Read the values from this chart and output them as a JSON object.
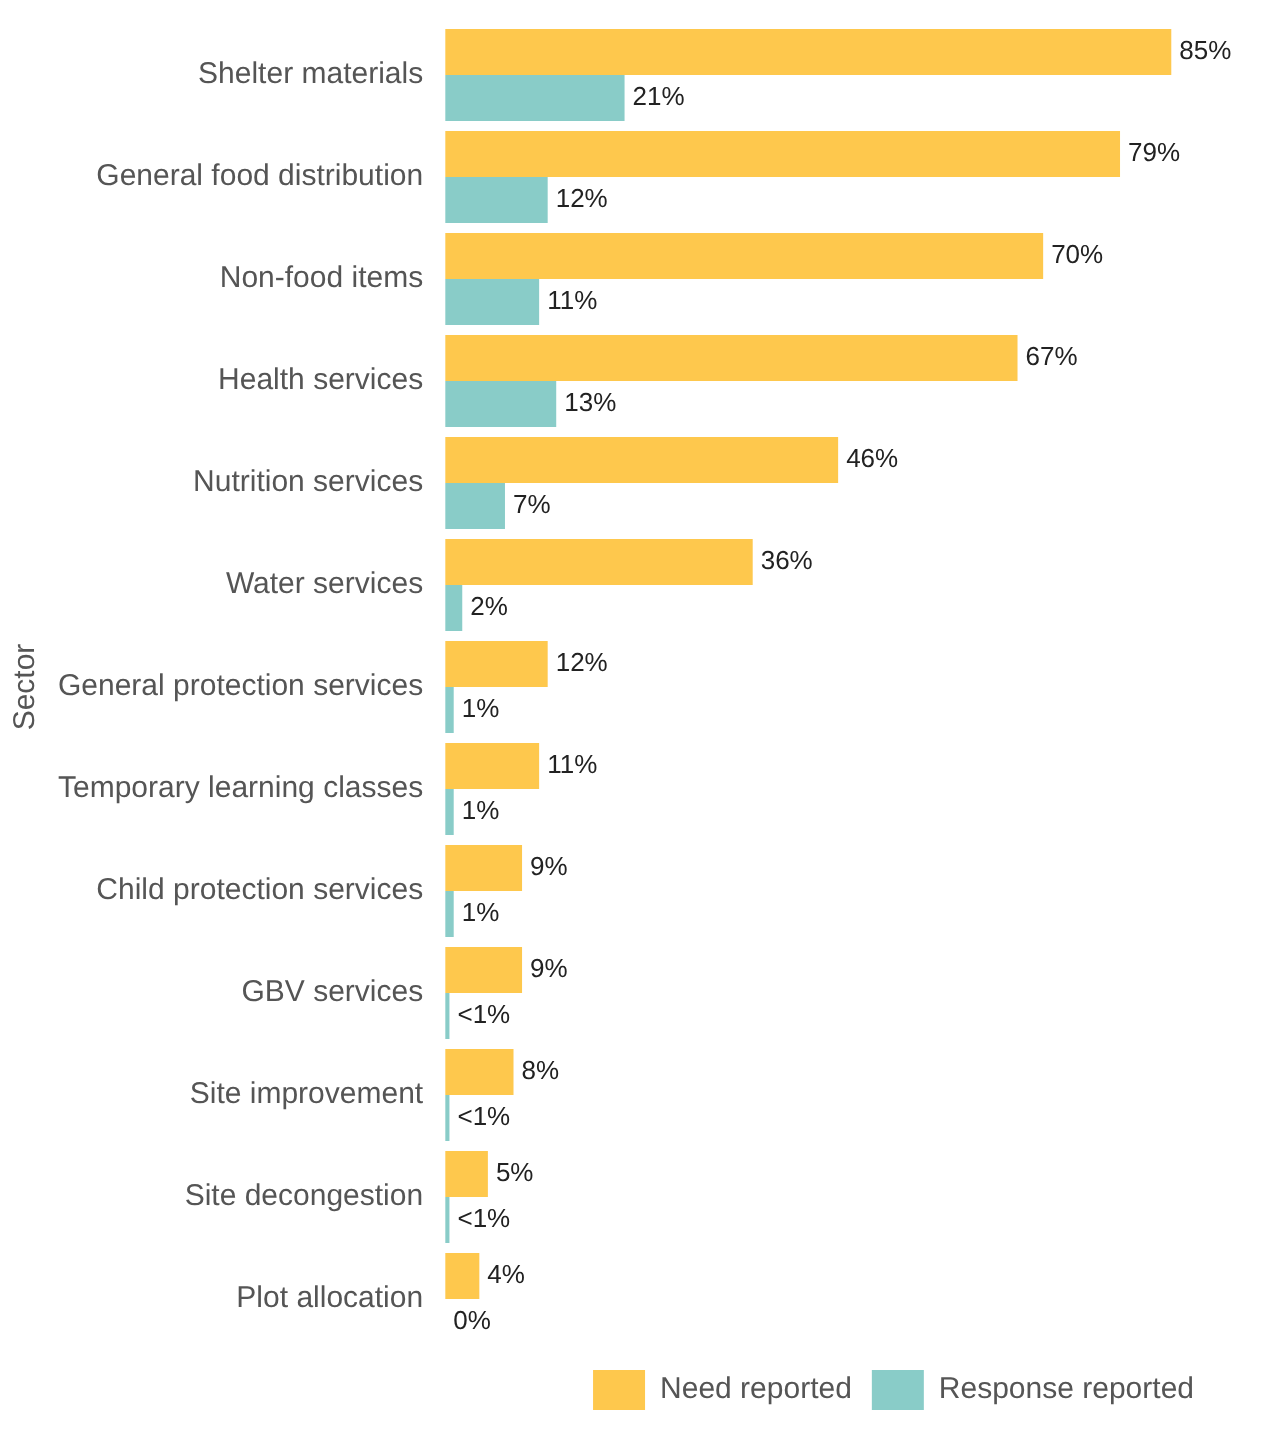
{
  "chart_data": {
    "type": "bar",
    "orientation": "horizontal",
    "ylabel": "Sector",
    "categories": [
      "Shelter materials",
      "General food distribution",
      "Non-food items",
      "Health services",
      "Nutrition services",
      "Water services",
      "General protection services",
      "Temporary learning classes",
      "Child protection services",
      "GBV services",
      "Site improvement",
      "Site decongestion",
      "Plot allocation"
    ],
    "series": [
      {
        "name": "Need reported",
        "color": "#fec84d",
        "values": [
          85,
          79,
          70,
          67,
          46,
          36,
          12,
          11,
          9,
          9,
          8,
          5,
          4
        ],
        "value_labels": [
          "85%",
          "79%",
          "70%",
          "67%",
          "46%",
          "36%",
          "12%",
          "11%",
          "9%",
          "9%",
          "8%",
          "5%",
          "4%"
        ]
      },
      {
        "name": "Response reported",
        "color": "#89ccc8",
        "values": [
          21,
          12,
          11,
          13,
          7,
          2,
          1,
          1,
          1,
          0.5,
          0.5,
          0.5,
          0
        ],
        "value_labels": [
          "21%",
          "12%",
          "11%",
          "13%",
          "7%",
          "2%",
          "1%",
          "1%",
          "1%",
          "<1%",
          "<1%",
          "<1%",
          "0%"
        ]
      }
    ],
    "legend": "bottom right"
  }
}
